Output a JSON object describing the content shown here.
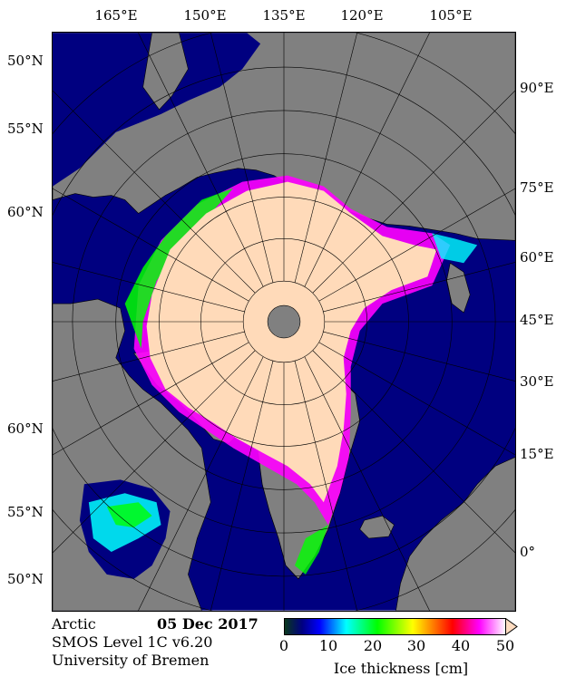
{
  "top_longitudes": [
    "165°E",
    "150°E",
    "135°E",
    "120°E",
    "105°E"
  ],
  "left_latitudes": [
    "50°N",
    "55°N",
    "60°N",
    "60°N",
    "55°N",
    "50°N"
  ],
  "right_longitudes": [
    "90°E",
    "75°E",
    "60°E",
    "45°E",
    "30°E",
    "15°E",
    "0°"
  ],
  "footer": {
    "region": "Arctic",
    "date": "05 Dec 2017",
    "product": "SMOS Level 1C v6.20",
    "institution": "University of Bremen"
  },
  "colorbar": {
    "ticks": [
      "0",
      "10",
      "20",
      "30",
      "40",
      "50"
    ],
    "label": "Ice thickness [cm]",
    "range": [
      0,
      50
    ],
    "colors": [
      "#0a3a1a",
      "#0000ff",
      "#00ffff",
      "#00ff00",
      "#ffff00",
      "#ff0000",
      "#ff00ff",
      "#ffffff"
    ],
    "over_color": "#ffdcc0"
  },
  "colors": {
    "ocean": "#000080",
    "land": "#808080",
    "thick_ice": "#ffdab9"
  }
}
